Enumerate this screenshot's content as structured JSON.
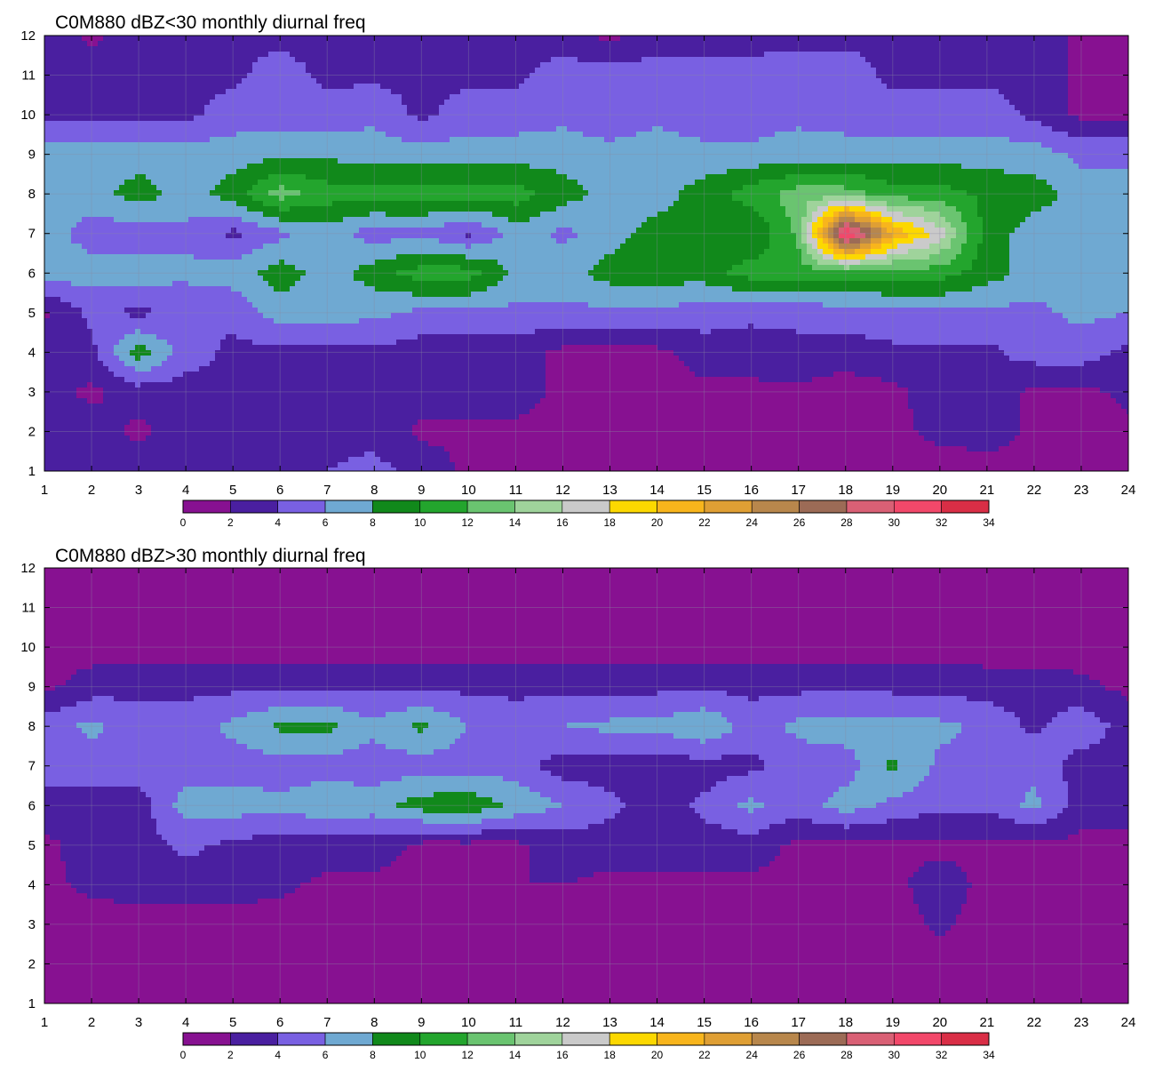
{
  "chart_data": [
    {
      "type": "heatmap",
      "title": "C0M880 dBZ<30 monthly diurnal freq",
      "x": [
        1,
        2,
        3,
        4,
        5,
        6,
        7,
        8,
        9,
        10,
        11,
        12,
        13,
        14,
        15,
        16,
        17,
        18,
        19,
        20,
        21,
        22,
        23,
        24
      ],
      "y": [
        1,
        2,
        3,
        4,
        5,
        6,
        7,
        8,
        9,
        10,
        11,
        12
      ],
      "xlim": [
        1,
        24
      ],
      "ylim": [
        1,
        12
      ],
      "xticks": [
        "1",
        "2",
        "3",
        "4",
        "5",
        "6",
        "7",
        "8",
        "9",
        "10",
        "11",
        "12",
        "13",
        "14",
        "15",
        "16",
        "17",
        "18",
        "19",
        "20",
        "21",
        "22",
        "23",
        "24"
      ],
      "yticks": [
        "1",
        "2",
        "3",
        "4",
        "5",
        "6",
        "7",
        "8",
        "9",
        "10",
        "11",
        "12"
      ],
      "grid": true,
      "contour_levels": [
        0,
        2,
        4,
        6,
        8,
        10,
        12,
        14,
        16,
        18,
        20,
        22,
        24,
        26,
        28,
        30,
        32,
        34
      ],
      "colorbar_labels": [
        "0",
        "2",
        "4",
        "6",
        "8",
        "10",
        "12",
        "14",
        "16",
        "18",
        "20",
        "22",
        "24",
        "26",
        "28",
        "30",
        "32",
        "34"
      ],
      "z": [
        [
          3.5,
          3.0,
          3.5,
          3.0,
          3.5,
          3.5,
          4.0,
          4.5,
          3.5,
          1.5,
          1.0,
          1.0,
          1.5,
          1.0,
          1.0,
          1.0,
          1.5,
          1.5,
          1.0,
          1.0,
          1.0,
          1.5,
          1.0,
          1.5
        ],
        [
          3.0,
          3.0,
          1.5,
          3.0,
          3.5,
          3.5,
          3.5,
          3.5,
          1.5,
          1.5,
          1.5,
          1.0,
          1.0,
          1.5,
          1.0,
          1.0,
          1.0,
          1.0,
          1.5,
          2.5,
          3.0,
          1.5,
          1.0,
          1.5
        ],
        [
          3.0,
          1.5,
          3.0,
          3.0,
          3.5,
          3.5,
          3.5,
          3.5,
          3.0,
          3.0,
          3.0,
          1.5,
          1.0,
          1.0,
          1.5,
          1.5,
          1.5,
          1.0,
          1.5,
          3.0,
          3.5,
          1.5,
          1.5,
          2.5
        ],
        [
          3.5,
          3.5,
          9.0,
          5.0,
          3.5,
          3.5,
          3.5,
          3.5,
          3.0,
          3.0,
          3.0,
          1.5,
          1.5,
          1.5,
          3.0,
          3.0,
          3.5,
          3.0,
          3.5,
          3.5,
          3.5,
          5.0,
          5.0,
          3.5
        ],
        [
          1.5,
          4.5,
          3.5,
          4.5,
          4.5,
          7.0,
          7.0,
          6.5,
          5.5,
          5.5,
          5.5,
          5.5,
          5.5,
          5.5,
          5.0,
          4.5,
          4.5,
          5.0,
          5.5,
          5.5,
          5.5,
          5.5,
          6.5,
          6.0
        ],
        [
          7.0,
          7.0,
          7.0,
          6.5,
          7.0,
          9.0,
          7.0,
          9.0,
          11.0,
          11.0,
          7.5,
          7.0,
          9.0,
          9.0,
          9.0,
          11.0,
          11.0,
          11.0,
          11.0,
          11.0,
          9.0,
          7.0,
          7.0,
          7.5
        ],
        [
          7.0,
          5.0,
          5.0,
          5.5,
          3.5,
          5.5,
          7.0,
          5.0,
          5.5,
          3.5,
          7.0,
          5.5,
          7.0,
          9.0,
          9.0,
          8.0,
          12.5,
          33.0,
          22.0,
          17.0,
          9.0,
          7.0,
          7.0,
          7.0
        ],
        [
          7.0,
          7.0,
          9.0,
          7.0,
          9.0,
          13.0,
          11.0,
          11.0,
          11.0,
          11.0,
          11.0,
          9.0,
          7.0,
          7.0,
          9.0,
          11.0,
          13.0,
          13.0,
          11.0,
          11.0,
          9.5,
          9.0,
          7.0,
          7.0
        ],
        [
          7.0,
          7.0,
          7.0,
          7.0,
          7.0,
          7.5,
          7.5,
          7.0,
          7.0,
          7.0,
          7.0,
          7.0,
          6.5,
          7.0,
          6.5,
          6.5,
          7.0,
          7.0,
          7.0,
          7.0,
          7.0,
          7.0,
          5.5,
          5.5
        ],
        [
          3.5,
          3.5,
          3.5,
          3.5,
          5.0,
          5.0,
          5.0,
          5.5,
          3.5,
          5.0,
          5.0,
          5.5,
          5.0,
          5.5,
          5.0,
          5.0,
          5.5,
          5.0,
          5.0,
          5.0,
          5.0,
          3.5,
          1.5,
          1.5
        ],
        [
          3.5,
          3.5,
          3.5,
          3.5,
          3.5,
          5.0,
          3.5,
          3.5,
          3.5,
          3.5,
          3.5,
          5.0,
          5.0,
          5.0,
          5.0,
          5.0,
          5.5,
          5.0,
          3.5,
          3.5,
          3.5,
          3.5,
          1.5,
          1.5
        ],
        [
          3.5,
          1.5,
          3.0,
          3.5,
          3.5,
          3.5,
          3.0,
          3.0,
          3.0,
          3.0,
          3.0,
          3.0,
          1.5,
          3.0,
          3.0,
          3.0,
          3.0,
          3.5,
          3.5,
          3.5,
          3.5,
          3.0,
          1.5,
          1.5
        ]
      ]
    },
    {
      "type": "heatmap",
      "title": "C0M880 dBZ>30 monthly diurnal freq",
      "x": [
        1,
        2,
        3,
        4,
        5,
        6,
        7,
        8,
        9,
        10,
        11,
        12,
        13,
        14,
        15,
        16,
        17,
        18,
        19,
        20,
        21,
        22,
        23,
        24
      ],
      "y": [
        1,
        2,
        3,
        4,
        5,
        6,
        7,
        8,
        9,
        10,
        11,
        12
      ],
      "xlim": [
        1,
        24
      ],
      "ylim": [
        1,
        12
      ],
      "xticks": [
        "1",
        "2",
        "3",
        "4",
        "5",
        "6",
        "7",
        "8",
        "9",
        "10",
        "11",
        "12",
        "13",
        "14",
        "15",
        "16",
        "17",
        "18",
        "19",
        "20",
        "21",
        "22",
        "23",
        "24"
      ],
      "yticks": [
        "1",
        "2",
        "3",
        "4",
        "5",
        "6",
        "7",
        "8",
        "9",
        "10",
        "11",
        "12"
      ],
      "grid": true,
      "contour_levels": [
        0,
        2,
        4,
        6,
        8,
        10,
        12,
        14,
        16,
        18,
        20,
        22,
        24,
        26,
        28,
        30,
        32,
        34
      ],
      "colorbar_labels": [
        "0",
        "2",
        "4",
        "6",
        "8",
        "10",
        "12",
        "14",
        "16",
        "18",
        "20",
        "22",
        "24",
        "26",
        "28",
        "30",
        "32",
        "34"
      ],
      "z": [
        [
          1.0,
          1.0,
          1.0,
          1.0,
          1.0,
          1.0,
          1.0,
          1.0,
          1.0,
          1.0,
          1.0,
          1.0,
          1.0,
          1.0,
          1.0,
          1.0,
          1.0,
          1.0,
          1.0,
          1.0,
          1.0,
          1.0,
          1.0,
          1.0
        ],
        [
          1.0,
          1.0,
          1.0,
          1.0,
          1.0,
          1.0,
          1.0,
          1.0,
          1.0,
          1.0,
          1.0,
          1.0,
          1.0,
          1.0,
          1.0,
          1.0,
          1.0,
          1.0,
          1.0,
          1.0,
          1.0,
          1.0,
          1.0,
          1.0
        ],
        [
          1.0,
          1.0,
          1.0,
          1.0,
          1.0,
          1.0,
          1.0,
          1.0,
          1.0,
          1.0,
          1.0,
          1.0,
          1.0,
          1.0,
          1.0,
          1.0,
          1.0,
          1.0,
          1.0,
          2.5,
          1.0,
          1.0,
          1.0,
          1.0
        ],
        [
          1.5,
          2.5,
          3.0,
          3.0,
          3.0,
          2.5,
          1.5,
          1.5,
          1.5,
          2.0,
          2.0,
          2.0,
          1.5,
          1.5,
          1.5,
          1.5,
          1.5,
          1.5,
          1.5,
          3.0,
          1.5,
          1.5,
          1.5,
          1.5
        ],
        [
          1.5,
          3.0,
          3.0,
          4.5,
          3.5,
          3.0,
          3.0,
          3.0,
          1.5,
          1.5,
          1.5,
          3.0,
          3.0,
          3.0,
          3.0,
          3.0,
          1.5,
          1.5,
          1.5,
          1.5,
          1.5,
          1.5,
          1.5,
          1.5
        ],
        [
          3.0,
          3.0,
          3.0,
          7.0,
          7.0,
          6.5,
          7.5,
          7.0,
          9.0,
          9.5,
          7.5,
          6.0,
          4.5,
          3.0,
          4.5,
          6.5,
          5.0,
          7.0,
          5.5,
          4.5,
          4.5,
          6.5,
          3.0,
          3.0
        ],
        [
          5.0,
          5.0,
          5.0,
          5.0,
          5.0,
          5.0,
          5.0,
          5.0,
          5.0,
          5.0,
          5.0,
          3.0,
          3.0,
          3.0,
          3.0,
          3.5,
          5.0,
          5.0,
          8.5,
          5.5,
          5.5,
          5.5,
          3.0,
          3.0
        ],
        [
          5.0,
          6.5,
          5.0,
          5.0,
          6.5,
          8.5,
          8.5,
          6.5,
          8.5,
          6.0,
          5.0,
          6.0,
          6.5,
          6.5,
          8.0,
          5.0,
          6.5,
          7.0,
          6.5,
          6.5,
          5.5,
          3.5,
          5.5,
          3.0
        ],
        [
          1.5,
          3.0,
          3.5,
          3.5,
          3.5,
          3.5,
          3.5,
          3.5,
          3.5,
          3.5,
          3.5,
          3.5,
          3.5,
          3.5,
          3.5,
          3.5,
          3.5,
          3.5,
          3.5,
          3.5,
          3.0,
          3.0,
          2.5,
          1.5
        ],
        [
          1.0,
          1.0,
          1.0,
          1.0,
          1.0,
          1.0,
          1.0,
          1.0,
          1.0,
          1.0,
          1.0,
          1.0,
          1.0,
          1.0,
          1.0,
          1.0,
          1.0,
          1.0,
          1.0,
          1.0,
          1.0,
          1.0,
          1.0,
          1.0
        ],
        [
          1.0,
          1.0,
          1.0,
          1.0,
          1.0,
          1.0,
          1.0,
          1.0,
          1.0,
          1.0,
          1.0,
          1.0,
          1.0,
          1.0,
          1.0,
          1.0,
          1.0,
          1.0,
          1.0,
          1.0,
          1.0,
          1.0,
          1.0,
          1.0
        ],
        [
          1.0,
          1.0,
          1.0,
          1.0,
          1.0,
          1.0,
          1.0,
          1.0,
          1.0,
          1.0,
          1.0,
          1.0,
          1.0,
          1.0,
          1.0,
          1.0,
          1.0,
          1.0,
          1.0,
          1.0,
          1.0,
          1.0,
          1.0,
          1.0
        ]
      ]
    }
  ],
  "colors": {
    "palette": [
      "#871191",
      "#4a1fa0",
      "#7960e2",
      "#6fa9d2",
      "#11891b",
      "#23a52d",
      "#6ac470",
      "#9fd39b",
      "#cacaca",
      "#fcd800",
      "#f8b51c",
      "#df9f34",
      "#b8874c",
      "#9c6b56",
      "#d96075",
      "#f2486a",
      "#d92e46"
    ],
    "contour_line": "#f0a030",
    "grid_line": "#8a8aa0"
  }
}
